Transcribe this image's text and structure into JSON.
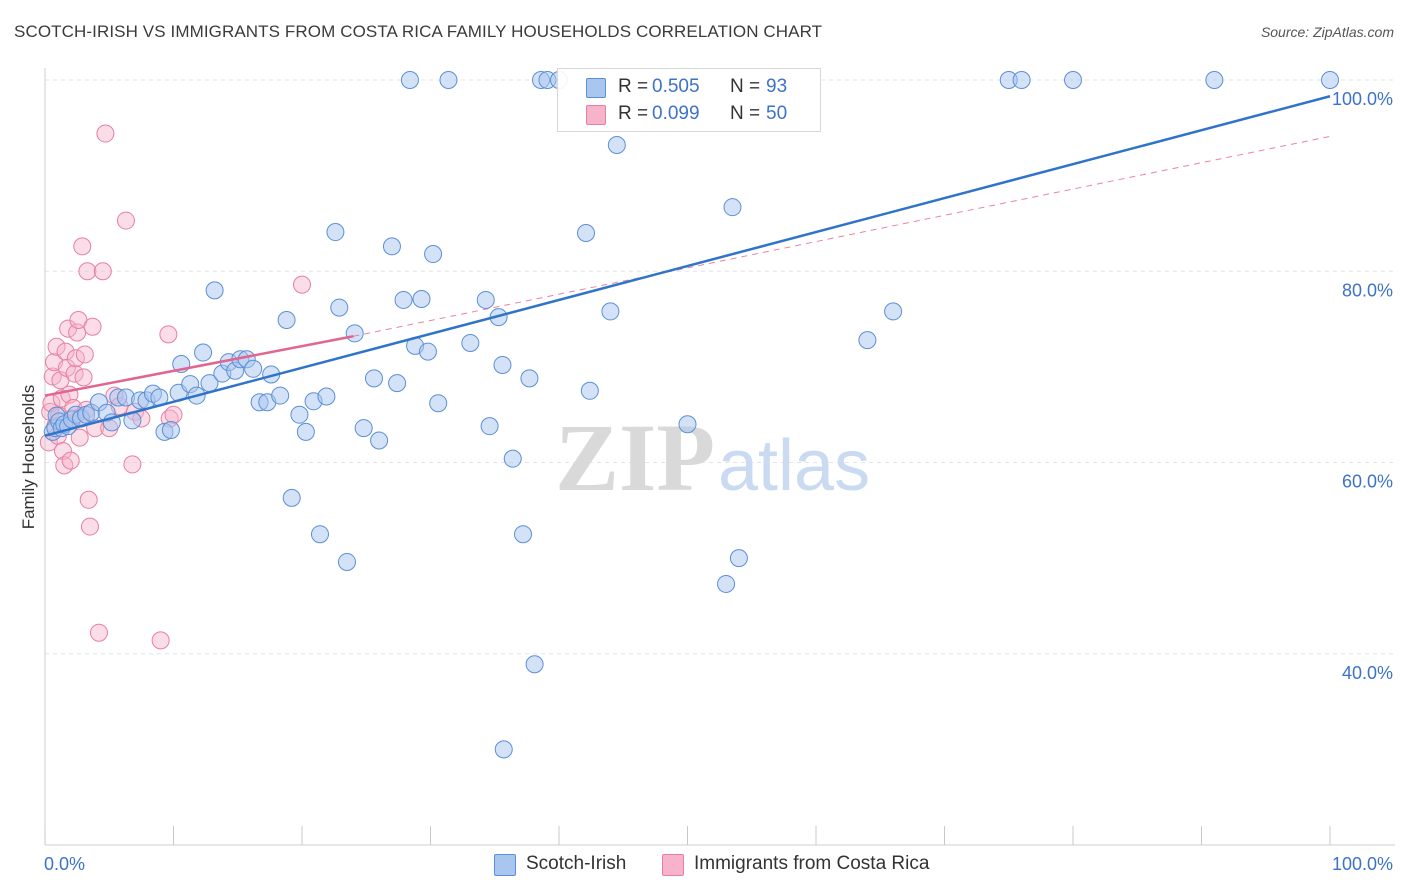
{
  "header": {
    "title": "SCOTCH-IRISH VS IMMIGRANTS FROM COSTA RICA FAMILY HOUSEHOLDS CORRELATION CHART",
    "source": "Source: ZipAtlas.com"
  },
  "watermark": {
    "zip": "ZIP",
    "atlas": "atlas"
  },
  "legend": {
    "series": [
      {
        "r_label": "R =",
        "r_value": "0.505",
        "n_label": "N =",
        "n_value": "93"
      },
      {
        "r_label": "R =",
        "r_value": "0.099",
        "n_label": "N =",
        "n_value": "50"
      }
    ]
  },
  "bottom_legend": {
    "series1": "Scotch-Irish",
    "series2": "Immigrants from Costa Rica"
  },
  "colors": {
    "blue_fill": "#a9c6ef",
    "blue_stroke": "#5b8fd6",
    "blue_line": "#2f74c9",
    "pink_fill": "#f6b3c9",
    "pink_stroke": "#e77fa2",
    "pink_line": "#e2658f",
    "grid": "#e4e4e4",
    "tick_text": "#3d72c9"
  },
  "chart_data": {
    "type": "scatter",
    "title": "SCOTCH-IRISH VS IMMIGRANTS FROM COSTA RICA FAMILY HOUSEHOLDS CORRELATION CHART",
    "xlabel": "",
    "ylabel": "Family Households",
    "xlim": [
      0,
      100
    ],
    "ylim": [
      20,
      102
    ],
    "x_tick_labels": [
      "0.0%",
      "100.0%"
    ],
    "y_ticks": [
      40,
      60,
      80,
      100
    ],
    "y_tick_labels": [
      "40.0%",
      "60.0%",
      "80.0%",
      "100.0%"
    ],
    "grid": true,
    "series": [
      {
        "name": "Scotch-Irish",
        "r": 0.505,
        "n": 93,
        "trend": {
          "x": [
            0,
            100
          ],
          "y": [
            62.8,
            98.3
          ]
        },
        "points": [
          [
            0.6,
            63.2
          ],
          [
            0.8,
            63.6
          ],
          [
            0.9,
            64.9
          ],
          [
            1.1,
            64.3
          ],
          [
            1.3,
            63.6
          ],
          [
            1.5,
            64.0
          ],
          [
            1.8,
            63.8
          ],
          [
            2.1,
            64.5
          ],
          [
            2.4,
            65.0
          ],
          [
            2.8,
            64.6
          ],
          [
            3.2,
            65.0
          ],
          [
            3.6,
            65.2
          ],
          [
            4.2,
            66.3
          ],
          [
            4.8,
            65.2
          ],
          [
            5.2,
            64.2
          ],
          [
            5.7,
            66.8
          ],
          [
            6.3,
            66.8
          ],
          [
            6.8,
            64.4
          ],
          [
            7.4,
            66.5
          ],
          [
            7.9,
            66.5
          ],
          [
            8.4,
            67.2
          ],
          [
            8.9,
            66.8
          ],
          [
            9.3,
            63.2
          ],
          [
            9.8,
            63.4
          ],
          [
            10.4,
            67.3
          ],
          [
            10.6,
            70.3
          ],
          [
            11.3,
            68.2
          ],
          [
            11.8,
            67.0
          ],
          [
            12.3,
            71.5
          ],
          [
            12.8,
            68.3
          ],
          [
            13.2,
            78.0
          ],
          [
            13.8,
            69.3
          ],
          [
            14.3,
            70.5
          ],
          [
            14.8,
            69.6
          ],
          [
            15.2,
            70.8
          ],
          [
            15.7,
            70.8
          ],
          [
            16.2,
            69.8
          ],
          [
            16.7,
            66.3
          ],
          [
            17.3,
            66.3
          ],
          [
            17.6,
            69.2
          ],
          [
            18.3,
            67.0
          ],
          [
            18.8,
            74.9
          ],
          [
            19.2,
            56.3
          ],
          [
            19.8,
            65.0
          ],
          [
            20.3,
            63.2
          ],
          [
            20.9,
            66.4
          ],
          [
            21.4,
            52.5
          ],
          [
            21.9,
            66.9
          ],
          [
            22.6,
            84.1
          ],
          [
            22.9,
            76.2
          ],
          [
            23.5,
            49.6
          ],
          [
            24.1,
            73.5
          ],
          [
            24.8,
            63.6
          ],
          [
            25.6,
            68.8
          ],
          [
            26.0,
            62.3
          ],
          [
            27.0,
            82.6
          ],
          [
            27.4,
            68.3
          ],
          [
            27.9,
            77.0
          ],
          [
            28.4,
            100.0
          ],
          [
            28.8,
            72.2
          ],
          [
            29.3,
            77.1
          ],
          [
            29.8,
            71.6
          ],
          [
            30.2,
            81.8
          ],
          [
            30.6,
            66.2
          ],
          [
            31.4,
            100.0
          ],
          [
            33.1,
            72.5
          ],
          [
            34.3,
            77.0
          ],
          [
            34.6,
            63.8
          ],
          [
            35.3,
            75.2
          ],
          [
            35.6,
            70.2
          ],
          [
            35.7,
            30.0
          ],
          [
            36.4,
            60.4
          ],
          [
            37.2,
            52.5
          ],
          [
            37.7,
            68.8
          ],
          [
            38.1,
            38.9
          ],
          [
            38.6,
            100.0
          ],
          [
            39.1,
            100.0
          ],
          [
            40.0,
            100.0
          ],
          [
            42.1,
            84.0
          ],
          [
            42.4,
            67.5
          ],
          [
            44.0,
            75.8
          ],
          [
            44.5,
            93.2
          ],
          [
            50.0,
            64.0
          ],
          [
            53.0,
            47.3
          ],
          [
            53.5,
            86.7
          ],
          [
            54.0,
            50.0
          ],
          [
            64.0,
            72.8
          ],
          [
            66.0,
            75.8
          ],
          [
            75.0,
            100.0
          ],
          [
            76.0,
            100.0
          ],
          [
            80.0,
            100.0
          ],
          [
            91.0,
            100.0
          ],
          [
            100.0,
            100.0
          ]
        ]
      },
      {
        "name": "Immigrants from Costa Rica",
        "r": 0.099,
        "n": 50,
        "trend": {
          "x": [
            0,
            24
          ],
          "y": [
            67.0,
            73.2
          ]
        },
        "trend_extended": {
          "x": [
            24,
            100
          ],
          "y": [
            73.2,
            94.1
          ]
        },
        "points": [
          [
            0.3,
            62.1
          ],
          [
            0.4,
            65.3
          ],
          [
            0.5,
            66.2
          ],
          [
            0.6,
            69.0
          ],
          [
            0.7,
            70.5
          ],
          [
            0.8,
            63.8
          ],
          [
            0.9,
            72.1
          ],
          [
            1.0,
            62.8
          ],
          [
            1.1,
            64.9
          ],
          [
            1.2,
            68.6
          ],
          [
            1.3,
            66.7
          ],
          [
            1.4,
            61.2
          ],
          [
            1.5,
            59.7
          ],
          [
            1.6,
            71.6
          ],
          [
            1.7,
            69.9
          ],
          [
            1.8,
            74.0
          ],
          [
            1.9,
            67.1
          ],
          [
            2.0,
            60.2
          ],
          [
            2.1,
            64.6
          ],
          [
            2.2,
            65.7
          ],
          [
            2.3,
            69.3
          ],
          [
            2.4,
            70.9
          ],
          [
            2.5,
            73.6
          ],
          [
            2.6,
            74.9
          ],
          [
            2.7,
            62.6
          ],
          [
            2.8,
            64.8
          ],
          [
            2.9,
            82.6
          ],
          [
            3.0,
            68.9
          ],
          [
            3.1,
            71.3
          ],
          [
            3.2,
            65.5
          ],
          [
            3.3,
            80.0
          ],
          [
            3.4,
            56.1
          ],
          [
            3.5,
            53.3
          ],
          [
            3.7,
            74.2
          ],
          [
            3.9,
            63.6
          ],
          [
            4.2,
            42.2
          ],
          [
            4.5,
            80.0
          ],
          [
            4.7,
            94.4
          ],
          [
            5.0,
            63.6
          ],
          [
            5.4,
            67.0
          ],
          [
            5.8,
            65.9
          ],
          [
            6.3,
            85.3
          ],
          [
            6.8,
            59.8
          ],
          [
            7.0,
            65.3
          ],
          [
            7.5,
            64.6
          ],
          [
            9.0,
            41.4
          ],
          [
            9.6,
            73.4
          ],
          [
            9.7,
            64.6
          ],
          [
            10.0,
            65.0
          ],
          [
            20.0,
            78.6
          ]
        ]
      }
    ]
  }
}
